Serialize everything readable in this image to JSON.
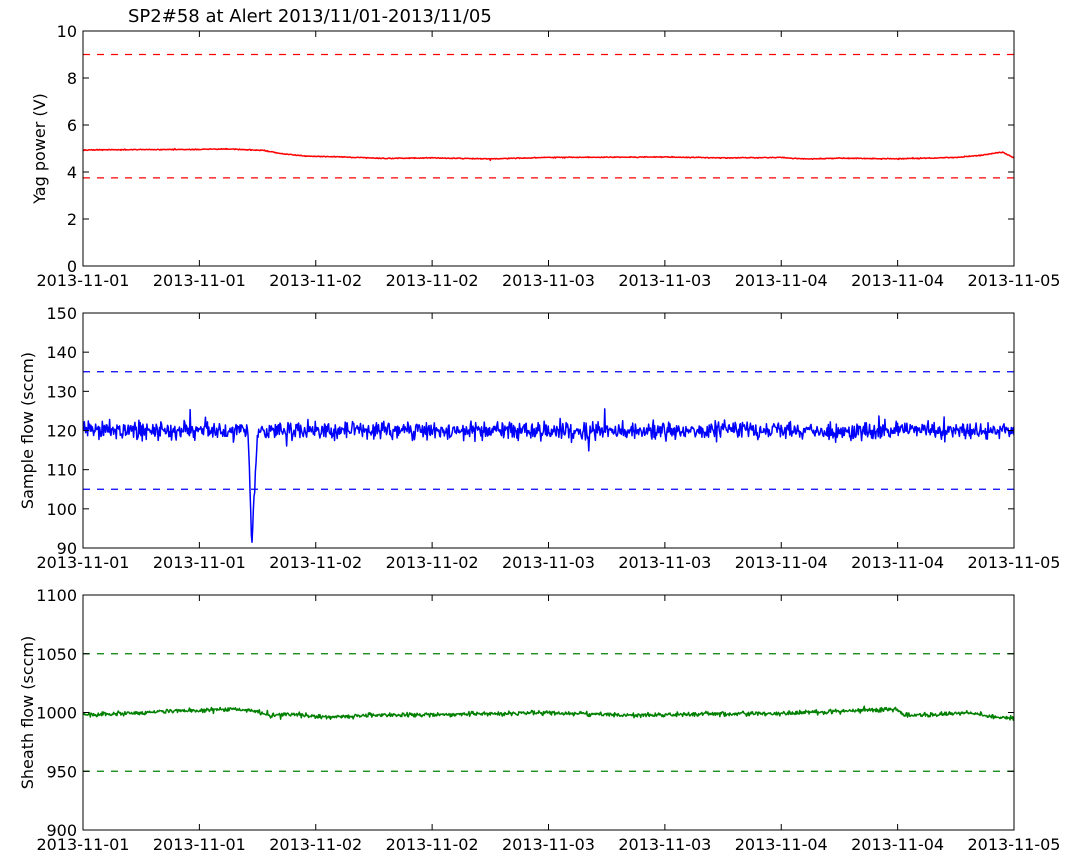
{
  "title": "SP2#58 at Alert 2013/11/01-2013/11/05",
  "chart_data": [
    {
      "type": "line",
      "ylabel": "Yag power (V)",
      "xlabel": "",
      "ylim": [
        0,
        10
      ],
      "yticks": [
        "0",
        "2",
        "4",
        "6",
        "8",
        "10"
      ],
      "xlim": [
        0,
        8
      ],
      "xtick_labels": [
        "2013-11-01",
        "2013-11-01",
        "2013-11-02",
        "2013-11-02",
        "2013-11-03",
        "2013-11-03",
        "2013-11-04",
        "2013-11-04",
        "2013-11-05"
      ],
      "grid": false,
      "color": "#ff0000",
      "noise": 0.02,
      "thresholds": [
        {
          "name": "upper-limit",
          "value": 9.0
        },
        {
          "name": "lower-limit",
          "value": 3.75
        }
      ],
      "series": [
        {
          "name": "yag-power",
          "x": [
            0,
            0.5,
            1.0,
            1.2,
            1.4,
            1.55,
            1.7,
            1.9,
            2.2,
            2.6,
            3.0,
            3.5,
            4.0,
            4.5,
            5.0,
            5.5,
            6.0,
            6.2,
            6.5,
            7.0,
            7.5,
            7.7,
            7.9,
            8.0
          ],
          "y": [
            4.94,
            4.95,
            4.96,
            4.98,
            4.95,
            4.92,
            4.78,
            4.68,
            4.64,
            4.58,
            4.6,
            4.56,
            4.62,
            4.63,
            4.64,
            4.6,
            4.62,
            4.55,
            4.59,
            4.56,
            4.62,
            4.7,
            4.85,
            4.6
          ]
        }
      ]
    },
    {
      "type": "line",
      "ylabel": "Sample flow (sccm)",
      "xlabel": "",
      "ylim": [
        90,
        150
      ],
      "yticks": [
        "90",
        "100",
        "110",
        "120",
        "130",
        "140",
        "150"
      ],
      "xlim": [
        0,
        8
      ],
      "xtick_labels": [
        "2013-11-01",
        "2013-11-01",
        "2013-11-02",
        "2013-11-02",
        "2013-11-03",
        "2013-11-03",
        "2013-11-04",
        "2013-11-04",
        "2013-11-05"
      ],
      "grid": false,
      "color": "#0000ff",
      "noise": 2.2,
      "thresholds": [
        {
          "name": "upper-limit",
          "value": 135
        },
        {
          "name": "lower-limit",
          "value": 105
        }
      ],
      "series": [
        {
          "name": "sample-flow",
          "x": [
            0,
            0.5,
            1.0,
            1.42,
            1.45,
            1.5,
            2.0,
            2.6,
            3.0,
            3.5,
            4.0,
            4.5,
            5.0,
            5.5,
            6.0,
            6.5,
            7.0,
            7.5,
            8.0
          ],
          "y": [
            120.2,
            120.0,
            119.8,
            120.0,
            90.0,
            120.0,
            120.0,
            120.2,
            119.9,
            120.1,
            119.8,
            120.0,
            119.9,
            120.1,
            120.0,
            119.7,
            120.1,
            120.0,
            120.0
          ]
        }
      ]
    },
    {
      "type": "line",
      "ylabel": "Sheath flow (sccm)",
      "xlabel": "",
      "ylim": [
        900,
        1100
      ],
      "yticks": [
        "900",
        "950",
        "1000",
        "1050",
        "1100"
      ],
      "xlim": [
        0,
        8
      ],
      "xtick_labels": [
        "2013-11-01",
        "2013-11-01",
        "2013-11-02",
        "2013-11-02",
        "2013-11-03",
        "2013-11-03",
        "2013-11-04",
        "2013-11-04",
        "2013-11-05"
      ],
      "grid": false,
      "color": "#008000",
      "noise": 1.8,
      "thresholds": [
        {
          "name": "upper-limit",
          "value": 1050
        },
        {
          "name": "lower-limit",
          "value": 950
        }
      ],
      "series": [
        {
          "name": "sheath-flow",
          "x": [
            0,
            0.5,
            1.0,
            1.3,
            1.5,
            1.6,
            1.8,
            2.1,
            2.6,
            3.0,
            3.5,
            4.0,
            4.5,
            5.0,
            5.5,
            6.0,
            6.5,
            7.0,
            7.05,
            7.3,
            7.6,
            7.8,
            8.0
          ],
          "y": [
            998,
            1000,
            1002,
            1003,
            1001,
            997,
            999,
            996,
            998,
            998,
            999,
            1000,
            998,
            998,
            999,
            999,
            1001,
            1003,
            998,
            998,
            1000,
            997,
            995
          ]
        }
      ]
    }
  ]
}
